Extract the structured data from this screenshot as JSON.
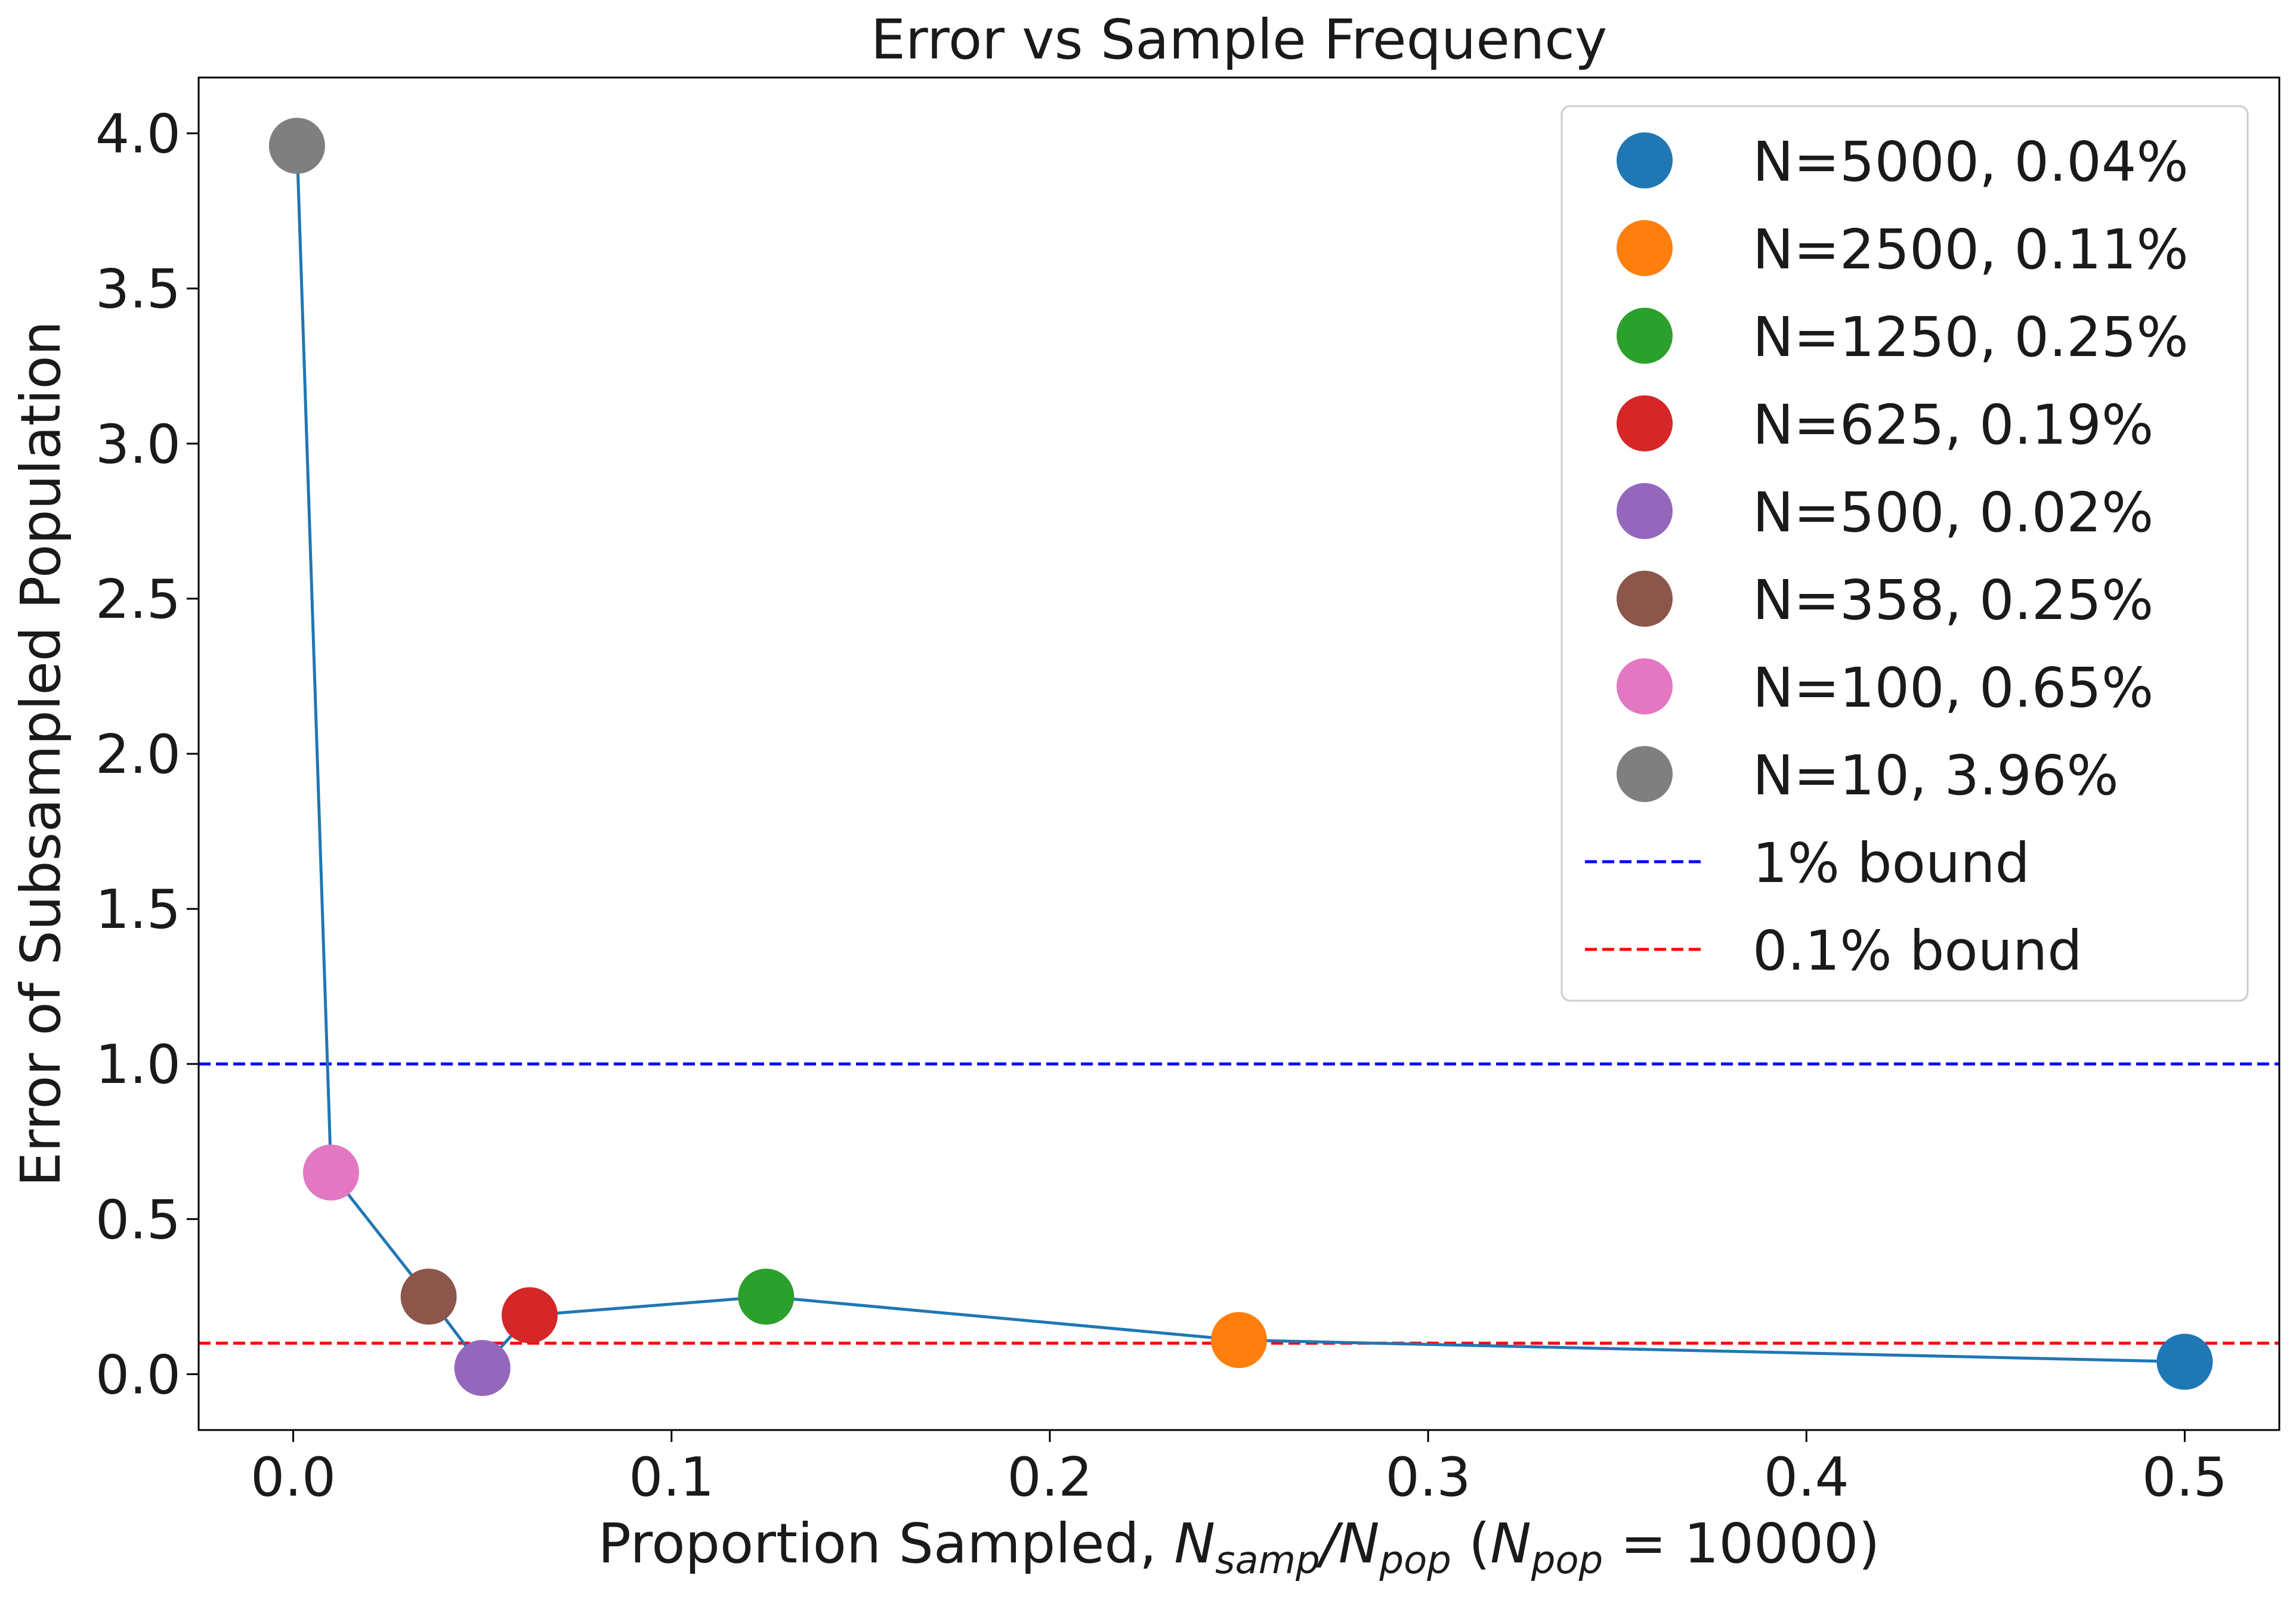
{
  "chart_data": {
    "type": "scatter",
    "title": "Error vs Sample Frequency",
    "xlabel": {
      "prefix": "Proportion Sampled, ",
      "n1": "N",
      "sub1": "samp",
      "slash": "/",
      "n2": "N",
      "sub2": "pop",
      "open": " (",
      "n3": "N",
      "sub3": "pop",
      "eq": " = 10000)"
    },
    "ylabel": "Error of Subsampled Population",
    "xlim": [
      -0.025,
      0.525
    ],
    "ylim": [
      -0.18,
      4.18
    ],
    "xticks": [
      {
        "value": 0.0,
        "label": "0.0"
      },
      {
        "value": 0.1,
        "label": "0.1"
      },
      {
        "value": 0.2,
        "label": "0.2"
      },
      {
        "value": 0.3,
        "label": "0.3"
      },
      {
        "value": 0.4,
        "label": "0.4"
      },
      {
        "value": 0.5,
        "label": "0.5"
      }
    ],
    "yticks": [
      {
        "value": 0.0,
        "label": "0.0"
      },
      {
        "value": 0.5,
        "label": "0.5"
      },
      {
        "value": 1.0,
        "label": "1.0"
      },
      {
        "value": 1.5,
        "label": "1.5"
      },
      {
        "value": 2.0,
        "label": "2.0"
      },
      {
        "value": 2.5,
        "label": "2.5"
      },
      {
        "value": 3.0,
        "label": "3.0"
      },
      {
        "value": 3.5,
        "label": "3.5"
      },
      {
        "value": 4.0,
        "label": "4.0"
      }
    ],
    "grid": false,
    "legend_position": "top-right",
    "line": {
      "color": "#1f77b4",
      "x": [
        0.001,
        0.01,
        0.0358,
        0.05,
        0.0625,
        0.125,
        0.25,
        0.5
      ],
      "y": [
        3.96,
        0.65,
        0.25,
        0.02,
        0.19,
        0.25,
        0.11,
        0.04
      ]
    },
    "points": [
      {
        "name": "N=5000, 0.04%",
        "x": 0.5,
        "y": 0.04,
        "color": "#1f77b4"
      },
      {
        "name": "N=2500, 0.11%",
        "x": 0.25,
        "y": 0.11,
        "color": "#ff7f0e"
      },
      {
        "name": "N=1250, 0.25%",
        "x": 0.125,
        "y": 0.25,
        "color": "#2ca02c"
      },
      {
        "name": "N=625, 0.19%",
        "x": 0.0625,
        "y": 0.19,
        "color": "#d62728"
      },
      {
        "name": "N=500, 0.02%",
        "x": 0.05,
        "y": 0.02,
        "color": "#9467bd"
      },
      {
        "name": "N=358, 0.25%",
        "x": 0.0358,
        "y": 0.25,
        "color": "#8c564b"
      },
      {
        "name": "N=100, 0.65%",
        "x": 0.01,
        "y": 0.65,
        "color": "#e377c2"
      },
      {
        "name": "N=10, 3.96%",
        "x": 0.001,
        "y": 3.96,
        "color": "#7f7f7f"
      }
    ],
    "bounds": [
      {
        "name": "1% bound",
        "y": 1.0,
        "color": "#0000ff"
      },
      {
        "name": "0.1% bound",
        "y": 0.1,
        "color": "#ff0000"
      }
    ]
  }
}
